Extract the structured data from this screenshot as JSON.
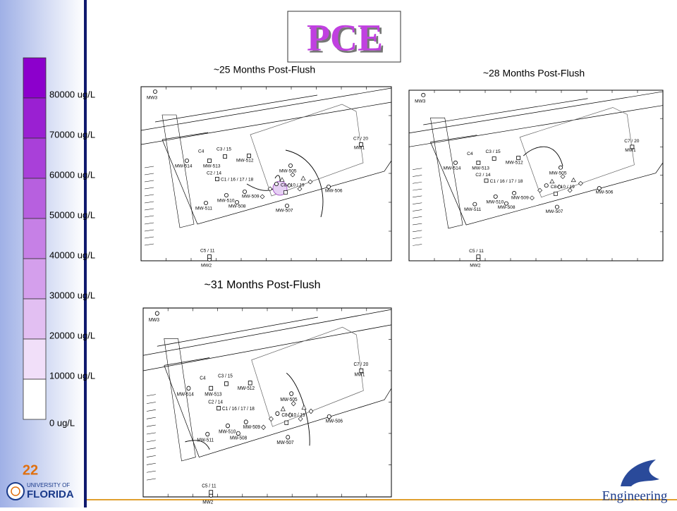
{
  "title": "PCE",
  "legend": [
    "80000  ug/L",
    "70000  ug/L",
    "60000  ug/L",
    "50000  ug/L",
    "40000  ug/L",
    "30000  ug/L",
    "20000  ug/L",
    "10000  ug/L",
    "0  ug/L"
  ],
  "panels": [
    {
      "title": "~25 Months Post-Flush"
    },
    {
      "title": "~28 Months Post-Flush"
    },
    {
      "title": "~31 Months Post-Flush"
    }
  ],
  "well_labels": [
    "MW3",
    "MW2",
    "C5 / 11",
    "C7 / 20",
    "MW1",
    "C4",
    "MW-514",
    "C3 / 15",
    "MW-513",
    "MW-512",
    "C2 / 14",
    "C1 / 16 / 17 / 18",
    "MW-505",
    "C8 / 10 / 19",
    "MW-506",
    "MW-509",
    "MW-510",
    "MW-511",
    "MW-508",
    "MW-507"
  ],
  "page_number": "22",
  "logos": {
    "university": [
      "UNIVERSITY OF",
      "FLORIDA"
    ],
    "college": "Engineering"
  }
}
